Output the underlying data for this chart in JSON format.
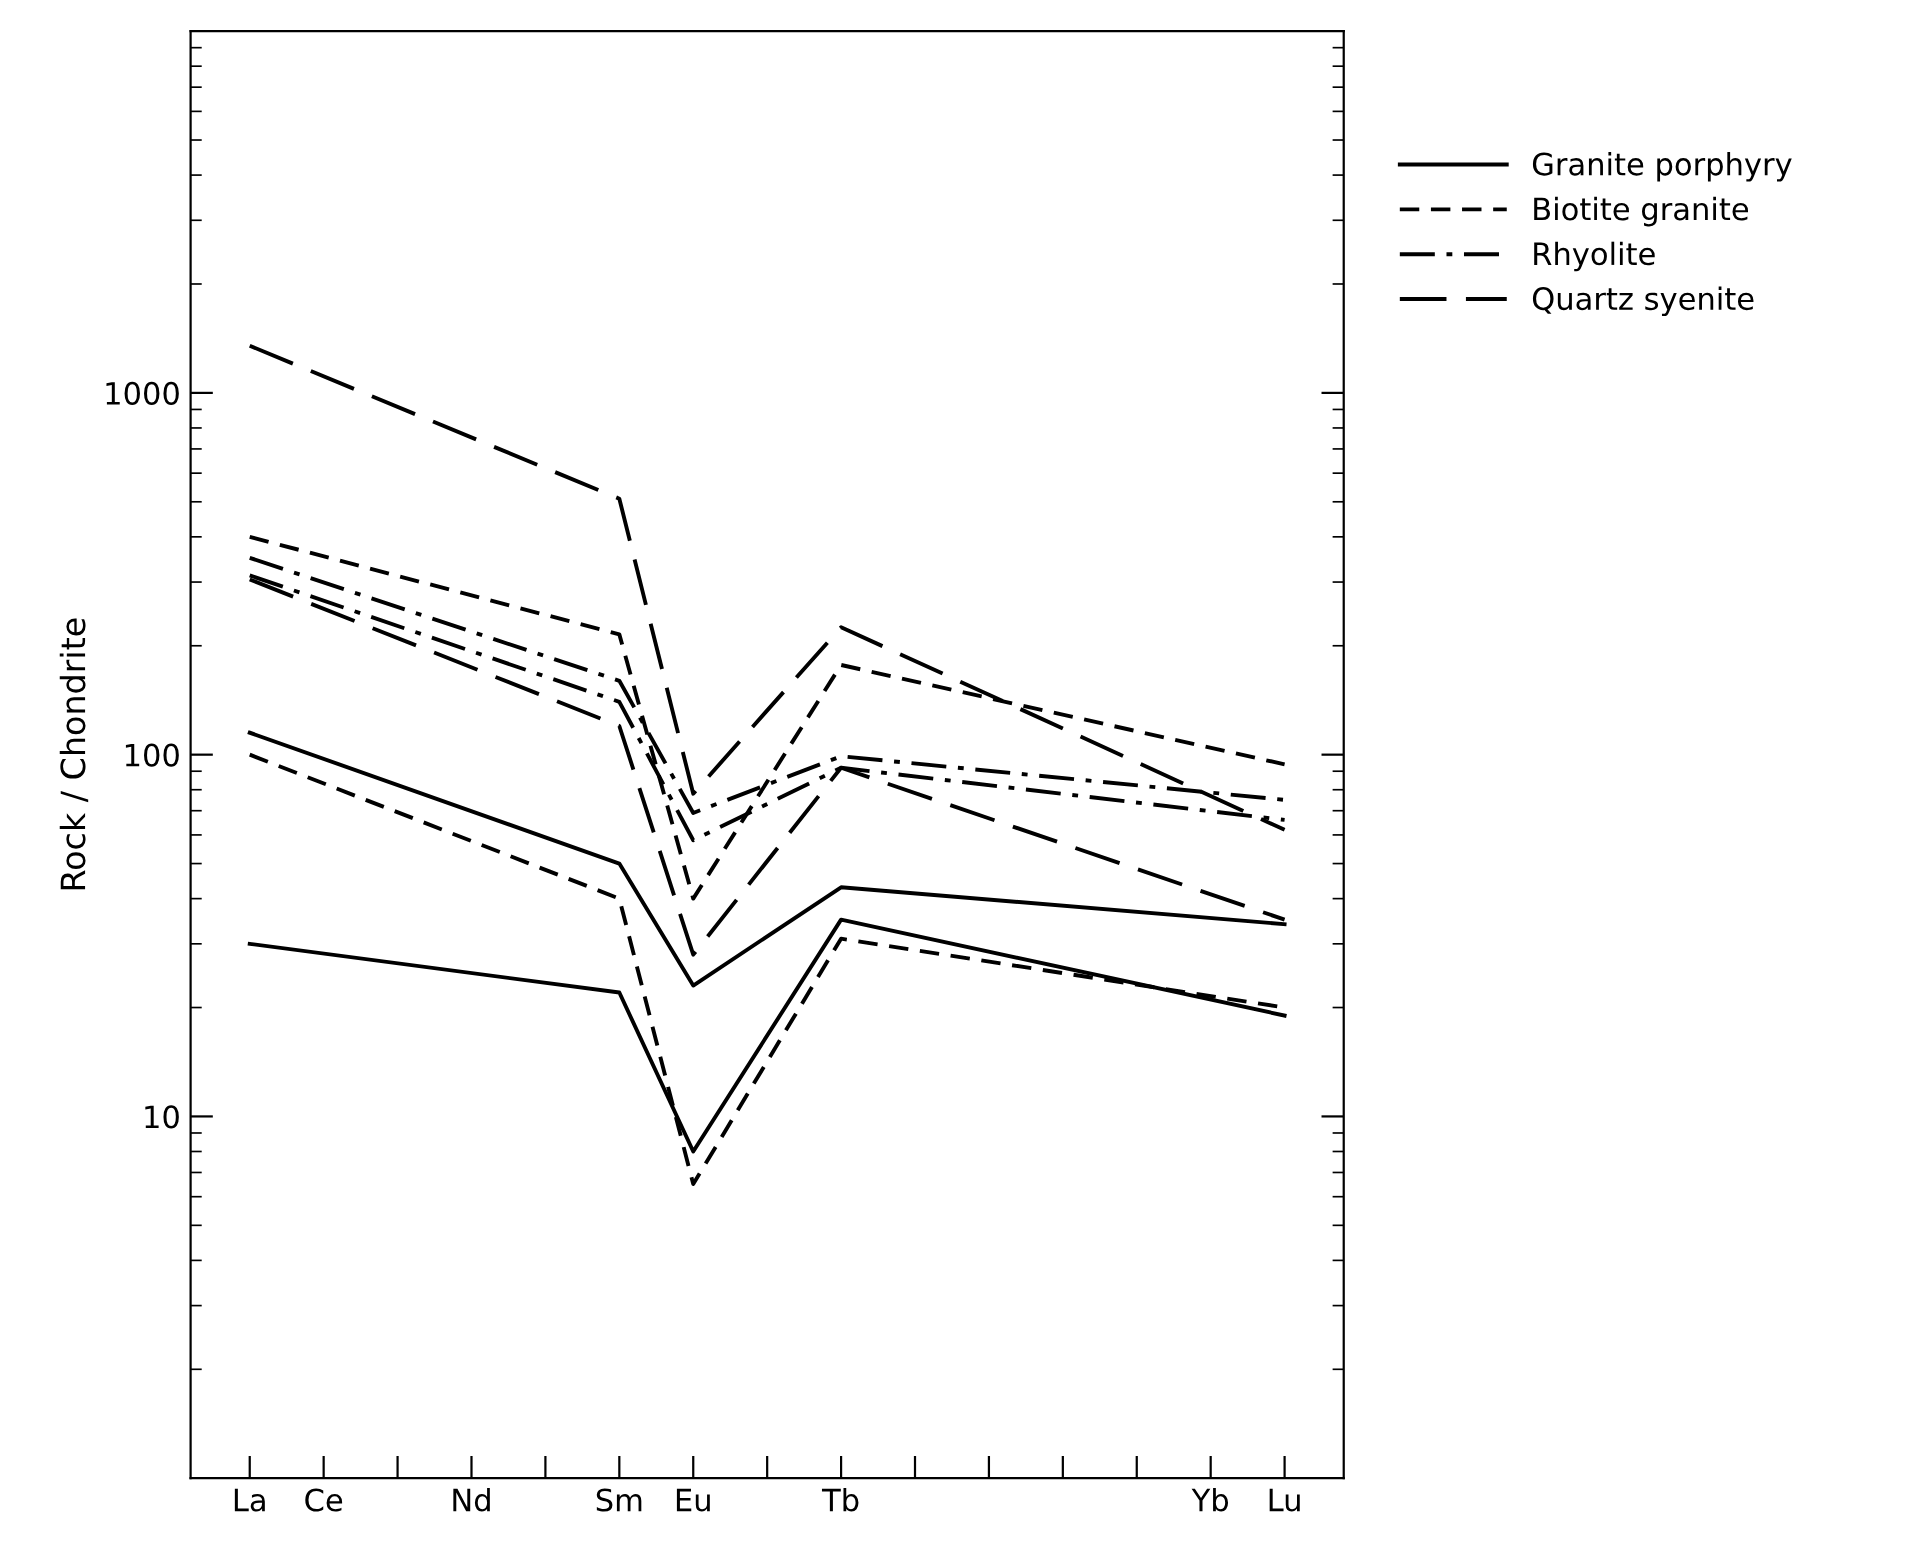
{
  "chart_data": {
    "type": "line",
    "ylabel": "Rock / Chondrite",
    "categories": [
      "La",
      "Ce",
      null,
      "Nd",
      null,
      "Sm",
      "Eu",
      null,
      "Tb",
      null,
      null,
      null,
      null,
      "Yb",
      "Lu"
    ],
    "log": "y",
    "ylim": [
      1,
      10000
    ],
    "yticks": [
      10,
      100,
      1000
    ],
    "grid": false,
    "legend": "top right",
    "marker": "none",
    "series": [
      {
        "name": "Granite porphyry",
        "color": "#000000",
        "line_style": "solid",
        "values": [
          115,
          null,
          null,
          null,
          null,
          50,
          23,
          null,
          43,
          null,
          null,
          null,
          null,
          null,
          34
        ]
      },
      {
        "color": "#000000",
        "line_style": "solid",
        "values": [
          30,
          null,
          null,
          null,
          null,
          22,
          8,
          null,
          35,
          null,
          null,
          null,
          null,
          null,
          19
        ]
      },
      {
        "name": "Biotite granite",
        "color": "#000000",
        "line_style": "dashed",
        "values": [
          100,
          null,
          null,
          null,
          null,
          40,
          6.5,
          null,
          31,
          null,
          null,
          null,
          null,
          null,
          20
        ]
      },
      {
        "color": "#000000",
        "line_style": "dashed",
        "values": [
          400,
          null,
          null,
          null,
          null,
          215,
          40,
          null,
          177,
          null,
          null,
          null,
          null,
          null,
          94
        ]
      },
      {
        "name": "Rhyolite",
        "color": "#000000",
        "line_style": "dashdot",
        "values": [
          350,
          null,
          null,
          null,
          null,
          160,
          69,
          null,
          99,
          null,
          null,
          null,
          null,
          null,
          75
        ]
      },
      {
        "color": "#000000",
        "line_style": "dashdot",
        "values": [
          313,
          null,
          null,
          null,
          null,
          140,
          58,
          null,
          92,
          null,
          null,
          null,
          null,
          null,
          66
        ]
      },
      {
        "name": "Quartz syenite",
        "color": "#000000",
        "line_style": "longdash",
        "values": [
          1350,
          null,
          null,
          null,
          null,
          510,
          78,
          null,
          225,
          null,
          null,
          null,
          null,
          null,
          62
        ]
      },
      {
        "color": "#000000",
        "line_style": "longdash",
        "values": [
          305,
          null,
          null,
          null,
          null,
          120,
          28,
          null,
          92,
          null,
          null,
          null,
          null,
          null,
          35
        ]
      }
    ]
  }
}
